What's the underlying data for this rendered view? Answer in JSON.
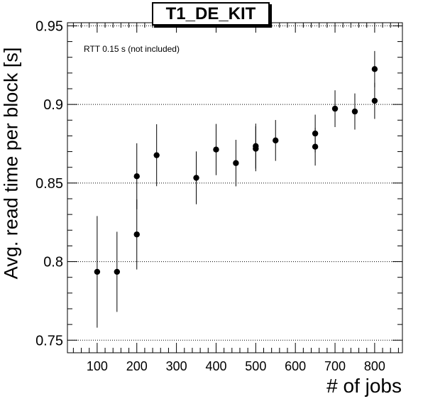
{
  "chart_data": {
    "type": "scatter",
    "title": "T1_DE_KIT",
    "annotation": "RTT 0.15 s (not included)",
    "xlabel": "# of jobs",
    "ylabel": "Avg. read time per block [s]",
    "xlim": [
      25,
      870
    ],
    "ylim": [
      0.742,
      0.952
    ],
    "xticks": [
      100,
      200,
      300,
      400,
      500,
      600,
      700,
      800
    ],
    "yticks": [
      0.75,
      0.8,
      0.85,
      0.9,
      0.95
    ],
    "ytick_labels": [
      "0.75",
      "0.8",
      "0.85",
      "0.9",
      "0.95"
    ],
    "grid": "y-dotted",
    "points": [
      {
        "x": 100,
        "y": 0.7935,
        "err": 0.0355
      },
      {
        "x": 150,
        "y": 0.7935,
        "err": 0.0255
      },
      {
        "x": 200,
        "y": 0.8543,
        "err": 0.021
      },
      {
        "x": 200,
        "y": 0.8173,
        "err": 0.0223
      },
      {
        "x": 250,
        "y": 0.8677,
        "err": 0.0197
      },
      {
        "x": 350,
        "y": 0.8533,
        "err": 0.0168
      },
      {
        "x": 400,
        "y": 0.8713,
        "err": 0.0163
      },
      {
        "x": 450,
        "y": 0.8627,
        "err": 0.0148
      },
      {
        "x": 500,
        "y": 0.8735,
        "err": 0.0143
      },
      {
        "x": 500,
        "y": 0.8718,
        "err": 0.0143
      },
      {
        "x": 550,
        "y": 0.8771,
        "err": 0.013
      },
      {
        "x": 650,
        "y": 0.8815,
        "err": 0.012
      },
      {
        "x": 650,
        "y": 0.8731,
        "err": 0.012
      },
      {
        "x": 700,
        "y": 0.8973,
        "err": 0.0117
      },
      {
        "x": 750,
        "y": 0.8955,
        "err": 0.0115
      },
      {
        "x": 800,
        "y": 0.9225,
        "err": 0.0115
      },
      {
        "x": 800,
        "y": 0.9023,
        "err": 0.0115
      }
    ]
  }
}
